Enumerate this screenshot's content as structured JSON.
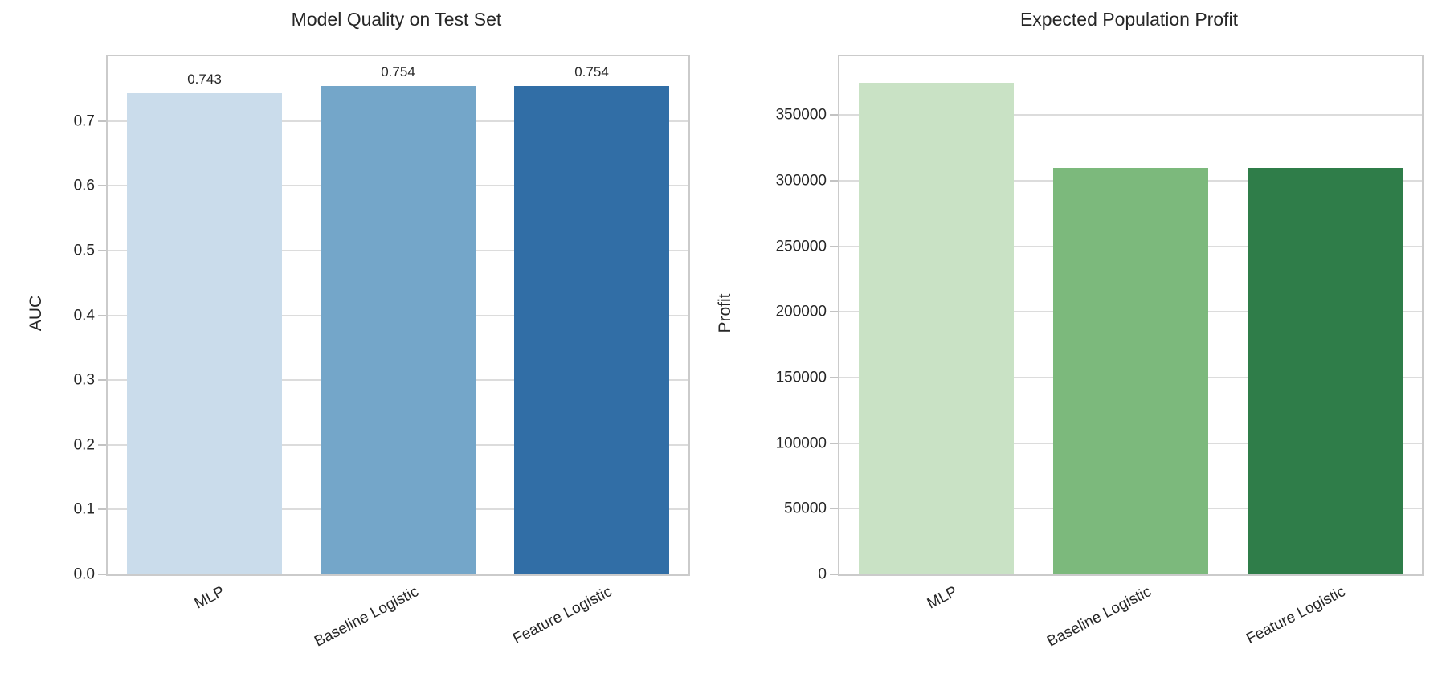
{
  "figure": {
    "background": "#ffffff",
    "text_color": "#262626",
    "grid_color": "#dcdcdc",
    "spine_color": "#cbcbcb"
  },
  "chart_data": [
    {
      "type": "bar",
      "title": "Model Quality on Test Set",
      "xlabel": "",
      "ylabel": "AUC",
      "categories": [
        "MLP",
        "Baseline Logistic",
        "Feature Logistic"
      ],
      "values": [
        0.743,
        0.754,
        0.754
      ],
      "bar_labels": [
        "0.743",
        "0.754",
        "0.754"
      ],
      "bar_colors": [
        "#cadceb",
        "#74a6c9",
        "#316ea6"
      ],
      "ylim": [
        0,
        0.8
      ],
      "yticks": [
        0.0,
        0.1,
        0.2,
        0.3,
        0.4,
        0.5,
        0.6,
        0.7
      ],
      "ytick_labels": [
        "0.0",
        "0.1",
        "0.2",
        "0.3",
        "0.4",
        "0.5",
        "0.6",
        "0.7"
      ],
      "grid": true,
      "legend_position": "none",
      "xtick_rotation_deg": 27
    },
    {
      "type": "bar",
      "title": "Expected Population Profit",
      "xlabel": "",
      "ylabel": "Profit",
      "categories": [
        "MLP",
        "Baseline Logistic",
        "Feature Logistic"
      ],
      "values": [
        375000,
        310000,
        310000
      ],
      "bar_labels": null,
      "bar_colors": [
        "#c9e2c5",
        "#7cb97c",
        "#2f7d49"
      ],
      "ylim": [
        0,
        395000
      ],
      "yticks": [
        0,
        50000,
        100000,
        150000,
        200000,
        250000,
        300000,
        350000
      ],
      "ytick_labels": [
        "0",
        "50000",
        "100000",
        "150000",
        "200000",
        "250000",
        "300000",
        "350000"
      ],
      "grid": true,
      "legend_position": "none",
      "xtick_rotation_deg": 27
    }
  ]
}
